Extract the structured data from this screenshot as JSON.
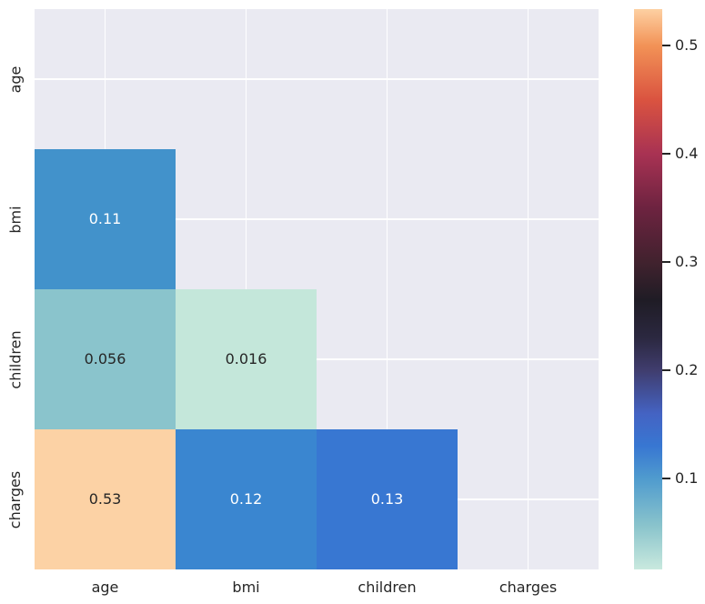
{
  "chart_data": {
    "type": "heatmap",
    "title": "",
    "description": "Lower-triangle correlation heatmap with upper triangle and diagonal masked",
    "variables": [
      "age",
      "bmi",
      "children",
      "charges"
    ],
    "x_ticklabels": [
      "age",
      "bmi",
      "children",
      "charges"
    ],
    "y_ticklabels": [
      "age",
      "bmi",
      "children",
      "charges"
    ],
    "axes_background": "#eaeaf2",
    "grid_color": "#ffffff",
    "tick_label_color": "#262626",
    "cells": [
      {
        "row": 1,
        "col": 0,
        "row_var": "bmi",
        "col_var": "age",
        "label": "0.11",
        "value": 0.11,
        "color": "#4292cb",
        "text_color": "#ffffff"
      },
      {
        "row": 2,
        "col": 0,
        "row_var": "children",
        "col_var": "age",
        "label": "0.056",
        "value": 0.056,
        "color": "#8ac4cc",
        "text_color": "#262626"
      },
      {
        "row": 2,
        "col": 1,
        "row_var": "children",
        "col_var": "bmi",
        "label": "0.016",
        "value": 0.016,
        "color": "#c4e7da",
        "text_color": "#262626"
      },
      {
        "row": 3,
        "col": 0,
        "row_var": "charges",
        "col_var": "age",
        "label": "0.53",
        "value": 0.53,
        "color": "#fcd2a5",
        "text_color": "#262626"
      },
      {
        "row": 3,
        "col": 1,
        "row_var": "charges",
        "col_var": "bmi",
        "label": "0.12",
        "value": 0.12,
        "color": "#3a86d0",
        "text_color": "#ffffff"
      },
      {
        "row": 3,
        "col": 2,
        "row_var": "charges",
        "col_var": "children",
        "label": "0.13",
        "value": 0.13,
        "color": "#3877d2",
        "text_color": "#ffffff"
      }
    ],
    "colorbar": {
      "colormap": "icefire",
      "vmin": 0.016,
      "vmax": 0.534,
      "tick_labels": [
        "0.1",
        "0.2",
        "0.3",
        "0.4",
        "0.5"
      ],
      "tick_values": [
        0.1,
        0.2,
        0.3,
        0.4,
        0.5
      ],
      "tick_color": "#262626",
      "gradient_stops": [
        {
          "value": 0.016,
          "color": "#c9e9de"
        },
        {
          "value": 0.056,
          "color": "#8ac4cc"
        },
        {
          "value": 0.1,
          "color": "#4f9bce"
        },
        {
          "value": 0.13,
          "color": "#3877d2"
        },
        {
          "value": 0.16,
          "color": "#4463c3"
        },
        {
          "value": 0.2,
          "color": "#403d6e"
        },
        {
          "value": 0.23,
          "color": "#2b2840"
        },
        {
          "value": 0.265,
          "color": "#1f1c25"
        },
        {
          "value": 0.3,
          "color": "#41222e"
        },
        {
          "value": 0.35,
          "color": "#6d2340"
        },
        {
          "value": 0.4,
          "color": "#a83253"
        },
        {
          "value": 0.45,
          "color": "#da5340"
        },
        {
          "value": 0.5,
          "color": "#f29256"
        },
        {
          "value": 0.534,
          "color": "#fdd0a2"
        }
      ]
    }
  }
}
